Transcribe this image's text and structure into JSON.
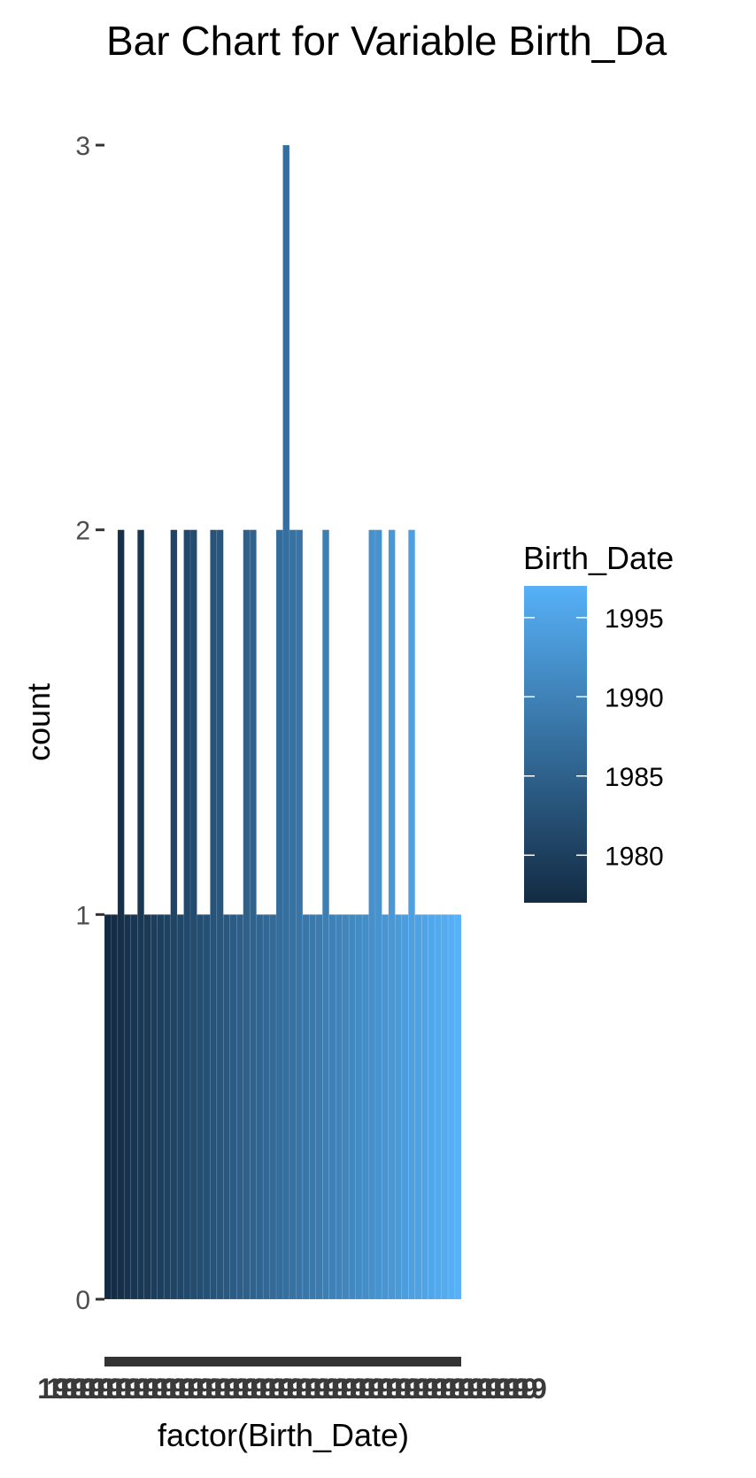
{
  "chart_data": {
    "type": "bar",
    "title": "Bar Chart for Variable Birth_Da",
    "xlabel": "factor(Birth_Date)",
    "ylabel": "count",
    "ylim": [
      0,
      3
    ],
    "yticks": [
      0,
      1,
      2,
      3
    ],
    "yticks_labels": [
      "0",
      "1",
      "2",
      "3"
    ],
    "x_tick_text_overlapped": "19",
    "grid": false,
    "legend": {
      "title": "Birth_Date",
      "placement": "right",
      "type": "colorbar",
      "range": [
        1977,
        1997
      ],
      "breaks": [
        1995,
        1990,
        1985,
        1980
      ],
      "breaks_labels": [
        "1995",
        "1990",
        "1985",
        "1980"
      ],
      "color_low": "#132b43",
      "color_high": "#56b1f7"
    },
    "bar_groups": [
      {
        "count": 1,
        "n": 36
      },
      {
        "count": 2,
        "n": 17
      },
      {
        "count": 3,
        "n": 1
      }
    ]
  }
}
